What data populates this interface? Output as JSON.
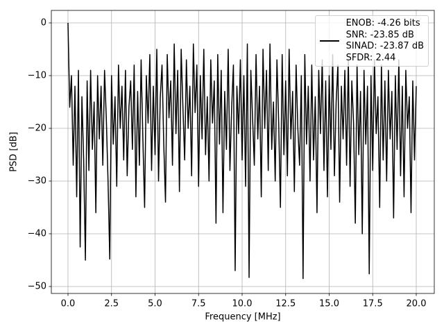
{
  "chart_data": {
    "type": "line",
    "xlabel": "Frequency [MHz]",
    "ylabel": "PSD [dB]",
    "x": [
      0,
      0.1,
      0.2,
      0.3,
      0.4,
      0.5,
      0.6,
      0.7,
      0.8,
      0.9,
      1,
      1.1,
      1.2,
      1.3,
      1.4,
      1.5,
      1.6,
      1.7,
      1.8,
      1.9,
      2,
      2.1,
      2.2,
      2.3,
      2.4,
      2.5,
      2.6,
      2.7,
      2.8,
      2.9,
      3,
      3.1,
      3.2,
      3.3,
      3.4,
      3.5,
      3.6,
      3.7,
      3.8,
      3.9,
      4,
      4.1,
      4.2,
      4.3,
      4.4,
      4.5,
      4.6,
      4.7,
      4.8,
      4.9,
      5,
      5.1,
      5.2,
      5.3,
      5.4,
      5.5,
      5.6,
      5.7,
      5.8,
      5.9,
      6,
      6.1,
      6.2,
      6.3,
      6.4,
      6.5,
      6.6,
      6.7,
      6.8,
      6.9,
      7,
      7.1,
      7.2,
      7.3,
      7.4,
      7.5,
      7.6,
      7.7,
      7.8,
      7.9,
      8,
      8.1,
      8.2,
      8.3,
      8.4,
      8.5,
      8.6,
      8.7,
      8.8,
      8.9,
      9,
      9.1,
      9.2,
      9.3,
      9.4,
      9.5,
      9.6,
      9.7,
      9.8,
      9.9,
      10,
      10.1,
      10.2,
      10.3,
      10.4,
      10.5,
      10.6,
      10.7,
      10.8,
      10.9,
      11,
      11.1,
      11.2,
      11.3,
      11.4,
      11.5,
      11.6,
      11.7,
      11.8,
      11.9,
      12,
      12.1,
      12.2,
      12.3,
      12.4,
      12.5,
      12.6,
      12.7,
      12.8,
      12.9,
      13,
      13.1,
      13.2,
      13.3,
      13.4,
      13.5,
      13.6,
      13.7,
      13.8,
      13.9,
      14,
      14.1,
      14.2,
      14.3,
      14.4,
      14.5,
      14.6,
      14.7,
      14.8,
      14.9,
      15,
      15.1,
      15.2,
      15.3,
      15.4,
      15.5,
      15.6,
      15.7,
      15.8,
      15.9,
      16,
      16.1,
      16.2,
      16.3,
      16.4,
      16.5,
      16.6,
      16.7,
      16.8,
      16.9,
      17,
      17.1,
      17.2,
      17.3,
      17.4,
      17.5,
      17.6,
      17.7,
      17.8,
      17.9,
      18,
      18.1,
      18.2,
      18.3,
      18.4,
      18.5,
      18.6,
      18.7,
      18.8,
      18.9,
      19,
      19.1,
      19.2,
      19.3,
      19.4,
      19.5,
      19.6,
      19.7,
      19.8,
      19.9,
      20
    ],
    "series": [
      {
        "name": "ENOB: -4.26 bits\nSNR: -23.85 dB\nSINAD: -23.87 dB\nSFDR: 2.44",
        "color": "#000000",
        "values": [
          0,
          -16,
          -10,
          -27,
          -12,
          -33,
          -9,
          -42.5,
          -14,
          -26,
          -45,
          -11,
          -28,
          -9,
          -24,
          -15,
          -36,
          -10,
          -22,
          -12,
          -27,
          -9,
          -18,
          -30,
          -44.8,
          -10,
          -23,
          -14,
          -31,
          -8,
          -20,
          -12,
          -26,
          -9,
          -29,
          -16,
          -11,
          -24,
          -8,
          -33,
          -13,
          -27,
          -7,
          -22,
          -35,
          -10,
          -19,
          -6,
          -28,
          -12,
          -25,
          -5,
          -30,
          -14,
          -8,
          -23,
          -34,
          -6,
          -18,
          -11,
          -27,
          -4,
          -21,
          -9,
          -32,
          -5,
          -16,
          -26,
          -7,
          -20,
          -12,
          -29,
          -4,
          -17,
          -8,
          -31,
          -10,
          -22,
          -5,
          -25,
          -14,
          -30,
          -7,
          -19,
          -11,
          -38,
          -6,
          -23,
          -9,
          -36,
          -13,
          -24,
          -5,
          -28,
          -16,
          -8,
          -47,
          -12,
          -21,
          -7,
          -26,
          -10,
          -31,
          -4,
          -48.3,
          -9,
          -18,
          -27,
          -6,
          -22,
          -12,
          -33,
          -5,
          -20,
          -9,
          -28,
          -4,
          -24,
          -15,
          -30,
          -7,
          -19,
          -35,
          -6,
          -25,
          -11,
          -29,
          -5,
          -22,
          -13,
          -32,
          -8,
          -20,
          -27,
          -10,
          -48.5,
          -6,
          -23,
          -12,
          -30,
          -8,
          -26,
          -14,
          -36,
          -9,
          -21,
          -7,
          -28,
          -11,
          -33,
          -10,
          -24,
          -6,
          -29,
          -15,
          -8,
          -34,
          -12,
          -22,
          -9,
          -27,
          -7,
          -31,
          -11,
          -19,
          -38,
          -8,
          -25,
          -13,
          -40,
          -9,
          -23,
          -12,
          -47.6,
          -10,
          -28,
          -7,
          -21,
          -14,
          -35,
          -8,
          -26,
          -11,
          -30,
          -9,
          -22,
          -13,
          -37,
          -10,
          -24,
          -7,
          -29,
          -12,
          -33,
          -9,
          -20,
          -14,
          -36,
          -11,
          -26,
          -12
        ]
      }
    ],
    "xlim": [
      -0.956,
      21.036
    ],
    "ylim": [
      -51.32,
      2.37
    ],
    "xticks": [
      {
        "value": 0,
        "label": "0.0"
      },
      2.5,
      {
        "value": 5,
        "label": "5.0"
      },
      7.5,
      {
        "value": 10,
        "label": "10.0"
      },
      12.5,
      {
        "value": 15,
        "label": "15.0"
      },
      17.5,
      {
        "value": 20,
        "label": "20.0"
      }
    ],
    "yticks": [
      {
        "value": -50,
        "label": "−50"
      },
      {
        "value": -40,
        "label": "−40"
      },
      {
        "value": -30,
        "label": "−30"
      },
      {
        "value": -20,
        "label": "−20"
      },
      {
        "value": -10,
        "label": "−10"
      },
      0
    ],
    "grid": true,
    "legend": "upper right"
  }
}
